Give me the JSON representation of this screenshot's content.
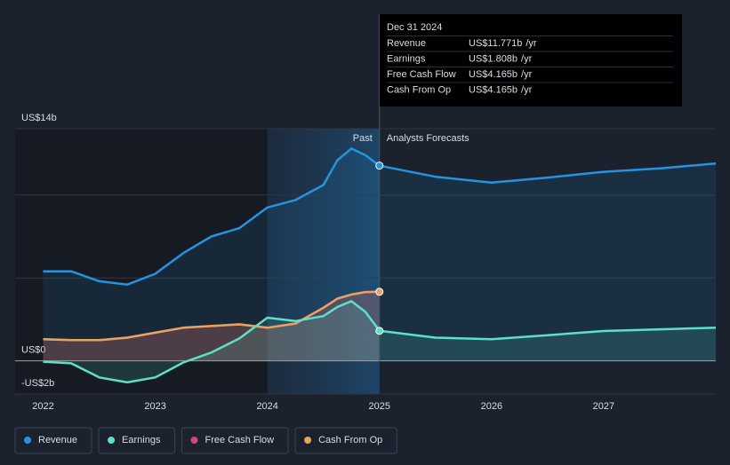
{
  "chart_data": {
    "type": "line",
    "x": [
      2022,
      2022.25,
      2022.5,
      2022.75,
      2023,
      2023.25,
      2023.5,
      2023.75,
      2024,
      2024.25,
      2024.5,
      2024.625,
      2024.75,
      2024.875,
      2025,
      2025.5,
      2026,
      2026.5,
      2027,
      2027.5,
      2028
    ],
    "series": [
      {
        "name": "Revenue",
        "color": "#2394df",
        "values": [
          5.4,
          5.4,
          4.8,
          4.6,
          5.25,
          6.5,
          7.5,
          8.0,
          9.25,
          9.7,
          10.6,
          12.1,
          12.8,
          12.4,
          11.771,
          11.1,
          10.75,
          11.05,
          11.4,
          11.6,
          11.9
        ]
      },
      {
        "name": "Earnings",
        "color": "#5ce0c8",
        "values": [
          -0.05,
          -0.15,
          -1.0,
          -1.3,
          -1.0,
          -0.1,
          0.5,
          1.35,
          2.6,
          2.4,
          2.7,
          3.25,
          3.6,
          2.95,
          1.808,
          1.4,
          1.3,
          1.55,
          1.8,
          1.9,
          2.0
        ]
      },
      {
        "name": "Free Cash Flow",
        "color": "#d0467a",
        "values": [
          1.3,
          1.25,
          1.25,
          1.4,
          1.7,
          2.0,
          2.1,
          2.2,
          2.0,
          2.25,
          3.2,
          3.75,
          4.0,
          4.15,
          4.165,
          null,
          null,
          null,
          null,
          null,
          null
        ]
      },
      {
        "name": "Cash From Op",
        "color": "#e8a45f",
        "values": [
          1.3,
          1.25,
          1.25,
          1.4,
          1.7,
          2.0,
          2.1,
          2.2,
          2.0,
          2.25,
          3.2,
          3.75,
          4.0,
          4.15,
          4.165,
          null,
          null,
          null,
          null,
          null,
          null
        ]
      }
    ],
    "xlim": [
      2021.75,
      2028
    ],
    "xticks": [
      2022,
      2023,
      2024,
      2025,
      2026,
      2027
    ],
    "ylim": [
      -2,
      14
    ],
    "yticks": [
      {
        "value": 14,
        "label": "US$14b"
      },
      {
        "value": 0,
        "label": "US$0"
      },
      {
        "value": -2,
        "label": "-US$2b"
      }
    ],
    "ygrid": [
      -2,
      0,
      5,
      10,
      14
    ],
    "highlight": [
      2024,
      2025
    ],
    "past_label": "Past",
    "forecast_label": "Analysts Forecasts",
    "tooltip": {
      "x": 2025,
      "date": "Dec 31 2024",
      "rows": [
        {
          "label": "Revenue",
          "value": "US$11.771b",
          "unit": "/yr"
        },
        {
          "label": "Earnings",
          "value": "US$1.808b",
          "unit": "/yr"
        },
        {
          "label": "Free Cash Flow",
          "value": "US$4.165b",
          "unit": "/yr"
        },
        {
          "label": "Cash From Op",
          "value": "US$4.165b",
          "unit": "/yr"
        }
      ]
    }
  }
}
